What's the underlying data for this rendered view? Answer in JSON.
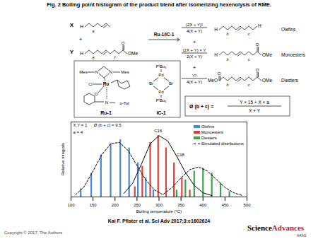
{
  "header": {
    "title": "Fig. 2 Boiling point histogram of the product blend after isomerizing hexenolysis of RME."
  },
  "scheme": {
    "reactants": [
      {
        "coef": "X",
        "left": "H",
        "index1": "a"
      },
      {
        "coef": "Y",
        "left": "H",
        "index1": "8",
        "index2": "7",
        "carbonyl": "O",
        "ester": "OMe"
      }
    ],
    "plus": "+",
    "arrow_label": "Ru-1/IC-1",
    "products": [
      {
        "coef_num": "(2X + Y)²",
        "coef_den": "4(X + Y)",
        "name": "Olefins",
        "left": "H",
        "index1": "b",
        "index2": "c",
        "right": "H"
      },
      {
        "coef_num": "(2X + Y) × Y",
        "coef_den": "2(X + Y)",
        "name": "Monoesters",
        "left": "H",
        "index1": "b",
        "index2": "c",
        "carbonyl": "O",
        "ester": "OMe"
      },
      {
        "coef_num": "Y²",
        "coef_den": "4(X + Y)",
        "name": "Diesters",
        "left": "MeO",
        "left_carbonyl": "O",
        "index1": "b",
        "index2": "c",
        "carbonyl": "O",
        "ester": "OMe"
      }
    ],
    "formula": {
      "lhs": "Ø (b + c) =",
      "num": "Y × 15 + X × a",
      "den": "X + Y"
    },
    "catalysts": [
      {
        "name": "Ru-1",
        "atoms": [
          "Mes",
          "N",
          "N",
          "Mes",
          "Cl",
          "Ru",
          "O",
          "N",
          "o-Tol"
        ]
      },
      {
        "name": "IC-1",
        "atoms": [
          "PᵗBu₃",
          "Pd",
          "Br",
          "Br",
          "Pd",
          "PᵗBu₃"
        ]
      }
    ]
  },
  "chart_data": {
    "type": "bar",
    "xlabel": "Boiling temperature (°C)",
    "ylabel": "Relative integrals",
    "xlim": [
      100,
      500
    ],
    "xticks": [
      100,
      150,
      200,
      250,
      300,
      350,
      400,
      450,
      500
    ],
    "ylim": [
      0,
      1.1
    ],
    "tick_labels": "x",
    "legend": "top-right",
    "series": [
      {
        "name": "Olefins",
        "color": "#4a86d8",
        "x": [
          122,
          146,
          168,
          190,
          212,
          232,
          252,
          270,
          287
        ],
        "values": [
          0.12,
          0.35,
          0.62,
          0.78,
          0.84,
          0.72,
          0.5,
          0.28,
          0.1
        ]
      },
      {
        "name": "Monoesters",
        "color": "#d9413a",
        "x": [
          245,
          262,
          280,
          298,
          316,
          334,
          352,
          370
        ],
        "values": [
          0.15,
          0.45,
          0.8,
          0.9,
          0.72,
          0.5,
          0.28,
          0.1
        ]
      },
      {
        "name": "Diesters",
        "color": "#3fa34d",
        "x": [
          340,
          360,
          380,
          400,
          420,
          440,
          460
        ],
        "values": [
          0.1,
          0.25,
          0.38,
          0.42,
          0.35,
          0.2,
          0.08
        ]
      }
    ],
    "simulated": {
      "name": "Simulated distributions",
      "color": "#000000",
      "type": "line",
      "curves": [
        {
          "line_style": "dashed",
          "x": [
            110,
            130,
            150,
            170,
            190,
            210,
            230,
            250,
            270,
            290,
            310
          ],
          "values": [
            0.03,
            0.15,
            0.38,
            0.62,
            0.78,
            0.8,
            0.68,
            0.46,
            0.25,
            0.1,
            0.03
          ]
        },
        {
          "line_style": "solid",
          "x": [
            220,
            240,
            260,
            280,
            300,
            320,
            340,
            360,
            380,
            400,
            420
          ],
          "values": [
            0.05,
            0.2,
            0.48,
            0.78,
            0.9,
            0.82,
            0.6,
            0.36,
            0.17,
            0.06,
            0.02
          ]
        },
        {
          "line_style": "dashed",
          "x": [
            310,
            330,
            350,
            370,
            390,
            410,
            430,
            450,
            470,
            490
          ],
          "values": [
            0.04,
            0.14,
            0.28,
            0.4,
            0.44,
            0.38,
            0.26,
            0.14,
            0.06,
            0.02
          ]
        }
      ]
    },
    "annotations": [
      "X,Y = 1",
      "a = 4",
      "Ø (b + c) = 9.5",
      "C16",
      "C18"
    ]
  },
  "footer": {
    "citation": "Kai F. Pfister et al. Sci Adv 2017;3:e1602624",
    "copyright": "Copyright © 2017, The Authors",
    "logo": [
      "Science",
      "Advances"
    ],
    "logo_sub": "AAAS"
  }
}
